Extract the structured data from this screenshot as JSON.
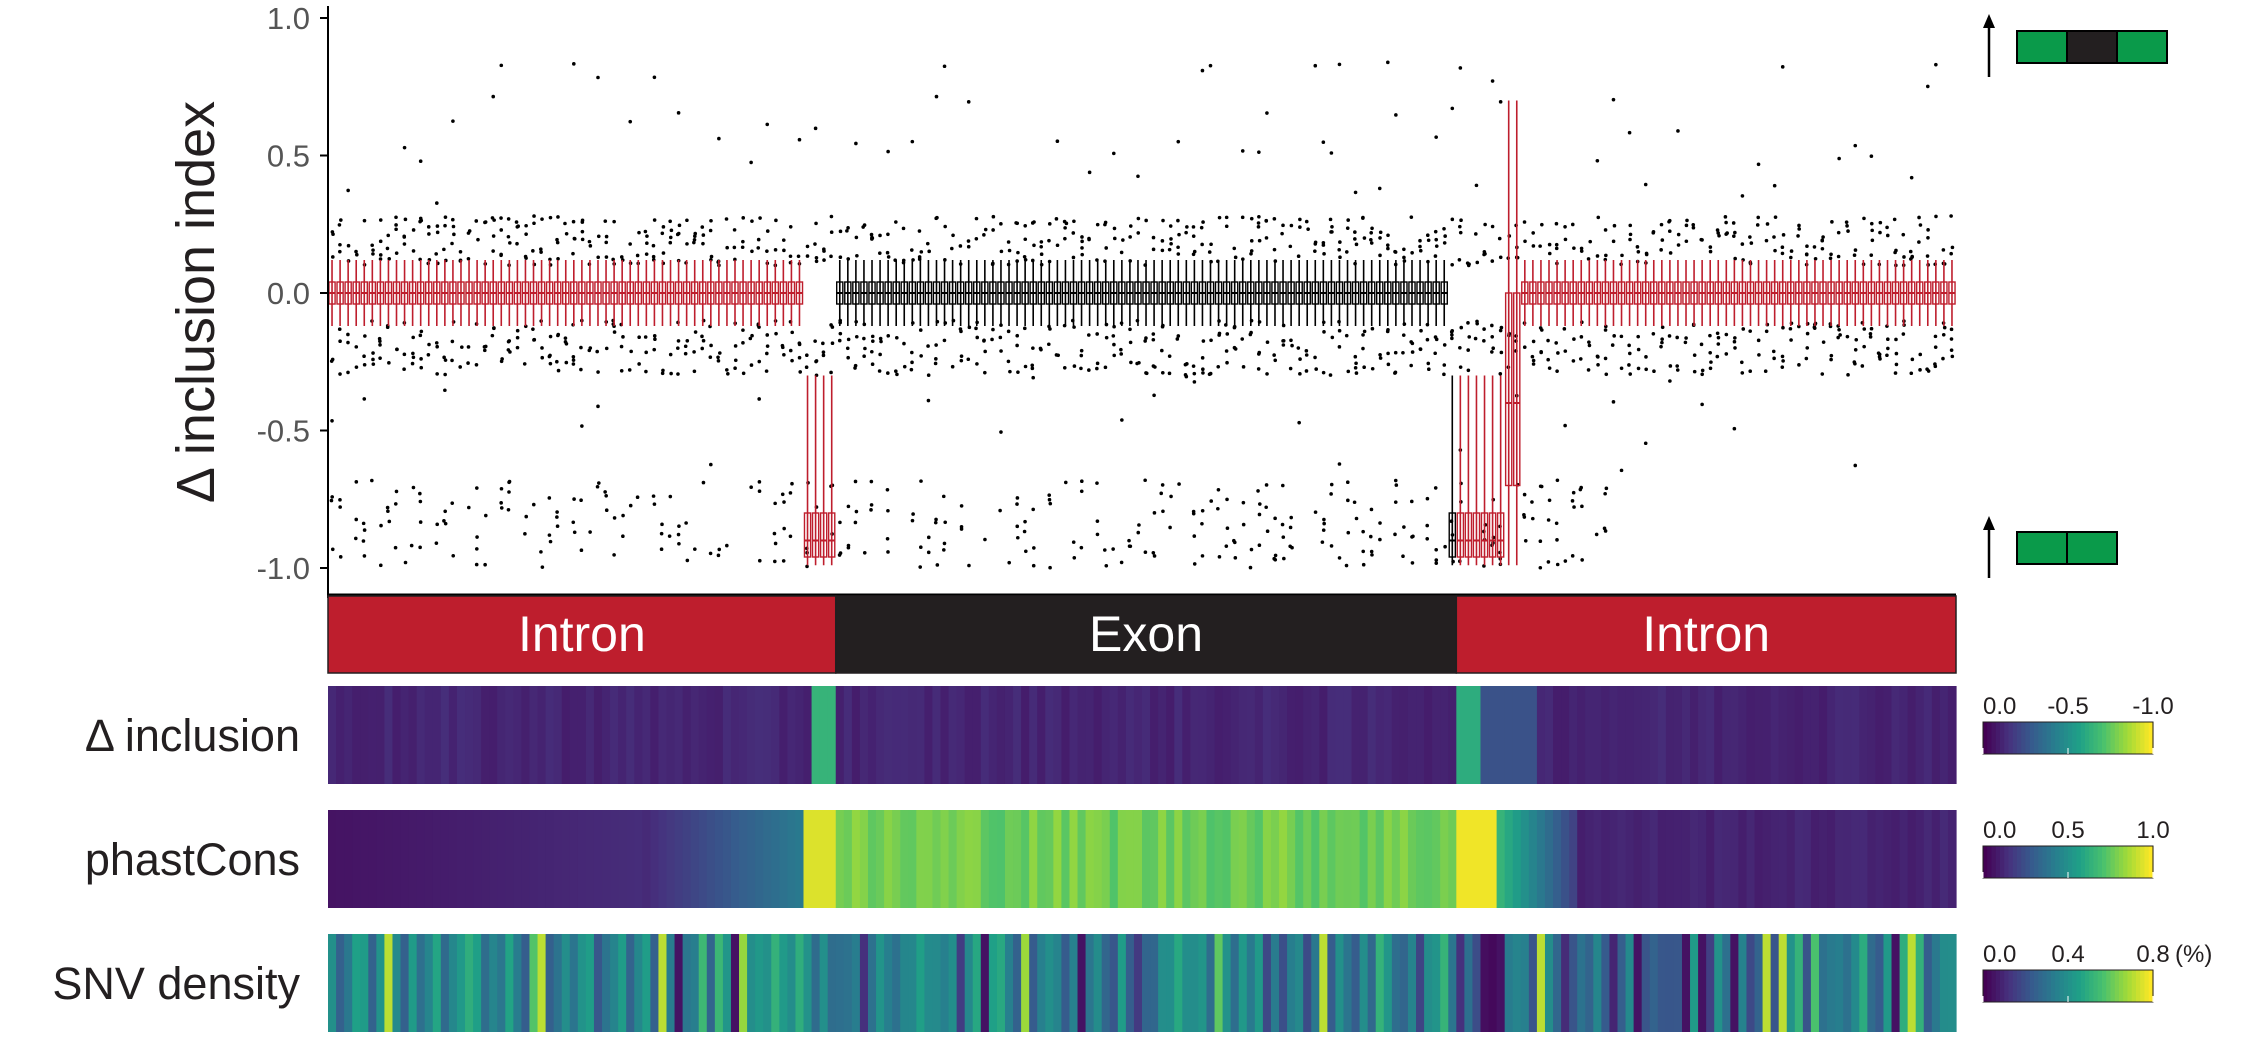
{
  "chart_data": {
    "type": "box",
    "ylabel": "Δ inclusion index",
    "ylim": [
      -1.1,
      1.02
    ],
    "y_ticks": [
      "1.0",
      "0.5",
      "0.0",
      "-0.5",
      "-1.0"
    ],
    "y_tick_values": [
      1.0,
      0.5,
      0.0,
      -0.5,
      -1.0
    ],
    "regions": [
      {
        "label": "Intron",
        "positions": [
          1,
          63
        ],
        "color": "#be1e2d"
      },
      {
        "label": "Exon",
        "positions": [
          64,
          140
        ],
        "color": "#231f20"
      },
      {
        "label": "Intron",
        "positions": [
          141,
          202
        ],
        "color": "#be1e2d"
      }
    ],
    "summary": {
      "positions": 202,
      "median_typical": 0.0,
      "iqr_typical": [
        -0.04,
        0.04
      ],
      "outlier_band_upper": [
        0.1,
        0.3
      ],
      "outlier_band_lower": [
        -1.0,
        -0.65
      ],
      "drops": [
        {
          "positions": [
            60,
            63
          ],
          "median": -0.9
        },
        {
          "positions": [
            140,
            146
          ],
          "median": -0.9
        }
      ],
      "intron_box_color": "#be1e2d",
      "exon_box_color": "#000000"
    },
    "construct_legend": [
      {
        "value": 1.0,
        "segments": [
          "#0a9a4a",
          "#231f20",
          "#0a9a4a"
        ]
      },
      {
        "value": -1.0,
        "segments": [
          "#0a9a4a",
          "#0a9a4a"
        ]
      }
    ],
    "heatmap_tracks": [
      {
        "label": "Δ inclusion",
        "scale_ticks": [
          "0.0",
          "-0.5",
          "-1.0"
        ],
        "scale_unit": ""
      },
      {
        "label": "phastCons",
        "scale_ticks": [
          "0.0",
          "0.5",
          "1.0"
        ],
        "scale_unit": ""
      },
      {
        "label": "SNV density",
        "scale_ticks": [
          "0.0",
          "0.4",
          "0.8"
        ],
        "scale_unit": "(%)"
      }
    ],
    "colormap": [
      "#440154",
      "#46327e",
      "#365c8d",
      "#277f8e",
      "#1fa187",
      "#4ac16d",
      "#a0da39",
      "#fde725"
    ]
  }
}
